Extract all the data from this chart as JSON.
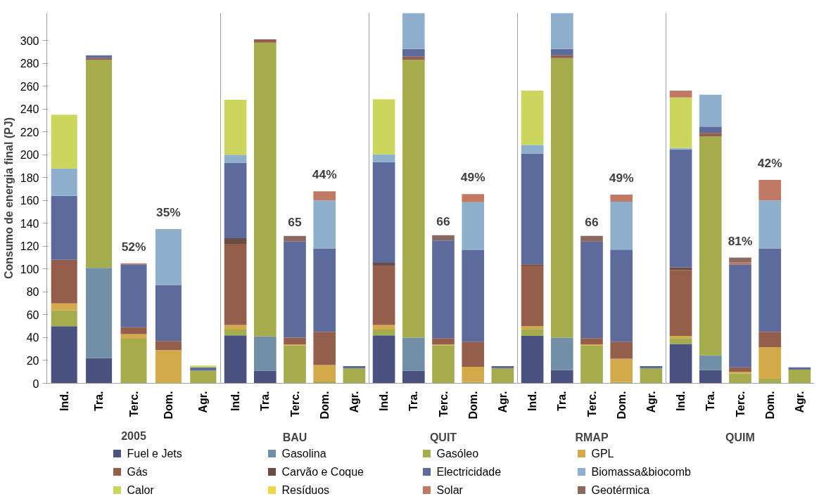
{
  "chart_data": [
    {
      "type": "bar",
      "stacked": true,
      "xlabel": "2005",
      "ylabel": "Consumo de energia final (PJ)",
      "categories": [
        "Ind.",
        "Tra.",
        "Terc.",
        "Dom.",
        "Agr."
      ],
      "ylim": [
        0,
        324
      ],
      "yticks": [
        0,
        20,
        40,
        60,
        80,
        100,
        120,
        140,
        160,
        180,
        200,
        220,
        240,
        260,
        280,
        300
      ],
      "grid": false,
      "legend": "bottom",
      "annotations": [
        {
          "text": "52%",
          "x": "Terc.",
          "y": 105
        },
        {
          "text": "35%",
          "x": "Dom.",
          "y": 135
        }
      ],
      "series": [
        {
          "name": "Fuel e Jets",
          "color": "#4a5380",
          "values": [
            50,
            22,
            0,
            0,
            0
          ]
        },
        {
          "name": "Gasolina",
          "color": "#7190a8",
          "values": [
            0,
            79,
            0,
            0,
            0
          ]
        },
        {
          "name": "Gasóleo",
          "color": "#a5ac4c",
          "values": [
            14,
            182,
            39,
            0,
            11
          ]
        },
        {
          "name": "GPL",
          "color": "#d4a94a",
          "values": [
            6,
            0,
            4,
            29,
            0
          ]
        },
        {
          "name": "Gás",
          "color": "#955e4b",
          "values": [
            38,
            1.5,
            6,
            8,
            0
          ]
        },
        {
          "name": "Carvão e Coque",
          "color": "#6b4c44",
          "values": [
            0,
            0,
            0,
            0,
            0
          ]
        },
        {
          "name": "Electricidade",
          "color": "#5d6a9c",
          "values": [
            56,
            2.5,
            55,
            49,
            3
          ]
        },
        {
          "name": "Biomassa&biocomb",
          "color": "#8fb0cc",
          "values": [
            24,
            0,
            0,
            49,
            0
          ]
        },
        {
          "name": "Calor",
          "color": "#cdd65c",
          "values": [
            47,
            0,
            0,
            0,
            1.5
          ]
        },
        {
          "name": "Resíduos",
          "color": "#f2d649",
          "values": [
            0,
            0,
            0,
            0,
            0
          ]
        },
        {
          "name": "Solar",
          "color": "#c07a64",
          "values": [
            0,
            0,
            1,
            0,
            0
          ]
        },
        {
          "name": "Geotérmica",
          "color": "#8a6a60",
          "values": [
            0,
            0,
            0,
            0,
            0
          ]
        }
      ]
    },
    {
      "type": "bar",
      "stacked": true,
      "xlabel": "BAU",
      "categories": [
        "Ind.",
        "Tra.",
        "Terc.",
        "Dom.",
        "Agr."
      ],
      "ylim": [
        0,
        324
      ],
      "tick_labels": "x",
      "grid": false,
      "annotations": [
        {
          "text": "65",
          "x": "Terc.",
          "y": 129
        },
        {
          "text": "44%",
          "x": "Dom.",
          "y": 168
        }
      ],
      "series": [
        {
          "color": "#4a5380",
          "values": [
            42,
            11,
            0,
            0,
            0
          ]
        },
        {
          "color": "#7190a8",
          "values": [
            0,
            30,
            0,
            0,
            0
          ]
        },
        {
          "color": "#a5ac4c",
          "values": [
            5,
            257,
            33,
            1.5,
            13
          ]
        },
        {
          "color": "#d4a94a",
          "values": [
            4,
            0,
            1,
            14.5,
            0
          ]
        },
        {
          "color": "#955e4b",
          "values": [
            71,
            3,
            6,
            29,
            0
          ]
        },
        {
          "color": "#6b4c44",
          "values": [
            5,
            0,
            0,
            0,
            0
          ]
        },
        {
          "color": "#5d6a9c",
          "values": [
            66,
            0,
            84,
            73,
            2
          ]
        },
        {
          "color": "#8fb0cc",
          "values": [
            7,
            0,
            0,
            42,
            0
          ]
        },
        {
          "color": "#cdd65c",
          "values": [
            48,
            0,
            0,
            0,
            0
          ]
        },
        {
          "color": "#c07a64",
          "values": [
            0,
            0,
            0,
            8,
            0
          ]
        },
        {
          "color": "#8a6a60",
          "values": [
            0,
            0,
            5,
            0,
            0
          ]
        }
      ]
    },
    {
      "type": "bar",
      "stacked": true,
      "xlabel": "QUIT",
      "categories": [
        "Ind.",
        "Tra.",
        "Terc.",
        "Dom.",
        "Agr."
      ],
      "ylim": [
        0,
        324
      ],
      "tick_labels": "x",
      "grid": false,
      "annotations": [
        {
          "text": "66",
          "x": "Terc.",
          "y": 129.5
        },
        {
          "text": "49%",
          "x": "Dom.",
          "y": 165.5
        }
      ],
      "series": [
        {
          "color": "#4a5380",
          "values": [
            42,
            11,
            0,
            0,
            0
          ]
        },
        {
          "color": "#7190a8",
          "values": [
            0,
            29,
            0,
            0,
            0
          ]
        },
        {
          "color": "#a5ac4c",
          "values": [
            5,
            243,
            33,
            1,
            13
          ]
        },
        {
          "color": "#d4a94a",
          "values": [
            4,
            0,
            1,
            13.5,
            0
          ]
        },
        {
          "color": "#955e4b",
          "values": [
            51.5,
            3,
            5.5,
            22,
            0
          ]
        },
        {
          "color": "#6b4c44",
          "values": [
            3,
            0,
            0,
            0,
            0
          ]
        },
        {
          "color": "#5d6a9c",
          "values": [
            88,
            6.5,
            85.5,
            80,
            2
          ]
        },
        {
          "color": "#8fb0cc",
          "values": [
            7,
            31.5,
            0,
            42,
            0
          ]
        },
        {
          "color": "#cdd65c",
          "values": [
            48,
            0,
            0,
            0,
            0
          ]
        },
        {
          "color": "#c07a64",
          "values": [
            0,
            0,
            0,
            7,
            0
          ]
        },
        {
          "color": "#8a6a60",
          "values": [
            0,
            0,
            4.5,
            0,
            0
          ]
        }
      ]
    },
    {
      "type": "bar",
      "stacked": true,
      "xlabel": "RMAP",
      "categories": [
        "Ind.",
        "Tra.",
        "Terc.",
        "Dom.",
        "Agr."
      ],
      "ylim": [
        0,
        324
      ],
      "tick_labels": "x",
      "grid": false,
      "annotations": [
        {
          "text": "66",
          "x": "Terc.",
          "y": 129
        },
        {
          "text": "49%",
          "x": "Dom.",
          "y": 165
        }
      ],
      "series": [
        {
          "color": "#4a5380",
          "values": [
            41.5,
            11.5,
            0,
            0,
            0
          ]
        },
        {
          "color": "#7190a8",
          "values": [
            0,
            28.5,
            0,
            0,
            0
          ]
        },
        {
          "color": "#a5ac4c",
          "values": [
            6,
            244.5,
            33,
            1,
            13
          ]
        },
        {
          "color": "#d4a94a",
          "values": [
            2.5,
            0,
            1,
            20.5,
            0
          ]
        },
        {
          "color": "#955e4b",
          "values": [
            53,
            2.5,
            5.5,
            15,
            0
          ]
        },
        {
          "color": "#6b4c44",
          "values": [
            1,
            0,
            0,
            0,
            0
          ]
        },
        {
          "color": "#5d6a9c",
          "values": [
            97,
            5.5,
            84.5,
            80.5,
            2
          ]
        },
        {
          "color": "#8fb0cc",
          "values": [
            7.5,
            31.5,
            0,
            42,
            0
          ]
        },
        {
          "color": "#cdd65c",
          "values": [
            47.5,
            0,
            0,
            0,
            0
          ]
        },
        {
          "color": "#c07a64",
          "values": [
            0,
            0,
            0,
            6,
            0
          ]
        },
        {
          "color": "#8a6a60",
          "values": [
            0,
            0,
            5,
            0,
            0
          ]
        }
      ]
    },
    {
      "type": "bar",
      "stacked": true,
      "xlabel": "QUIM",
      "categories": [
        "Ind.",
        "Tra.",
        "Terc.",
        "Dom.",
        "Agr."
      ],
      "ylim": [
        0,
        324
      ],
      "tick_labels": "x",
      "grid": false,
      "annotations": [
        {
          "text": "81%",
          "x": "Terc.",
          "y": 110
        },
        {
          "text": "42%",
          "x": "Dom.",
          "y": 178
        }
      ],
      "series": [
        {
          "color": "#4a5380",
          "values": [
            34.5,
            11.5,
            0,
            0,
            0
          ]
        },
        {
          "color": "#7190a8",
          "values": [
            0,
            13,
            0,
            0,
            0
          ]
        },
        {
          "color": "#a5ac4c",
          "values": [
            5,
            191.5,
            8.5,
            4,
            12
          ]
        },
        {
          "color": "#d4a94a",
          "values": [
            2,
            0,
            1.5,
            27.5,
            0
          ]
        },
        {
          "color": "#955e4b",
          "values": [
            57.5,
            3,
            4,
            13.5,
            0
          ]
        },
        {
          "color": "#6b4c44",
          "values": [
            2.5,
            0,
            0,
            0,
            0
          ]
        },
        {
          "color": "#5d6a9c",
          "values": [
            103,
            5.5,
            90,
            73,
            2
          ]
        },
        {
          "color": "#8fb0cc",
          "values": [
            1.5,
            28,
            0,
            42,
            0
          ]
        },
        {
          "color": "#cdd65c",
          "values": [
            44,
            0,
            0,
            0,
            0
          ]
        },
        {
          "color": "#c07a64",
          "values": [
            6,
            0,
            2,
            18,
            0
          ]
        },
        {
          "color": "#8a6a60",
          "values": [
            0,
            0,
            4,
            0,
            0
          ]
        }
      ]
    }
  ]
}
